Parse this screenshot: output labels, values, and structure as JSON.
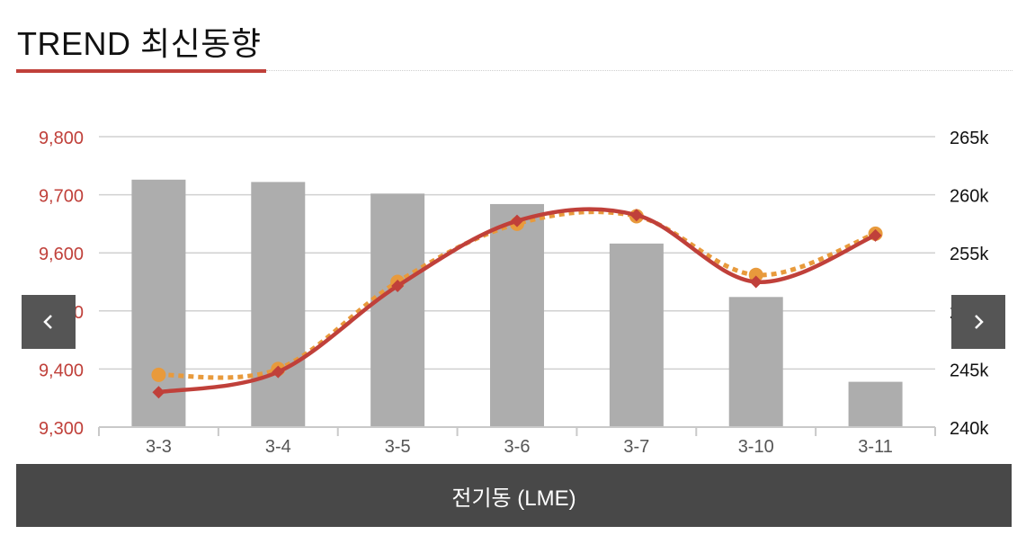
{
  "header": {
    "title": "TREND 최신동향"
  },
  "caption": "전기동 (LME)",
  "nav": {
    "prev_icon": "chevron-left-icon",
    "next_icon": "chevron-right-icon"
  },
  "chart_data": {
    "type": "bar+line",
    "categories": [
      "3-3",
      "3-4",
      "3-5",
      "3-6",
      "3-7",
      "3-10",
      "3-11"
    ],
    "left_axis": {
      "ticks": [
        "9,300",
        "9,400",
        "9,500",
        "9,600",
        "9,700",
        "9,800"
      ],
      "range": [
        9300,
        9800
      ],
      "color": "#c0403a"
    },
    "right_axis": {
      "ticks": [
        "240k",
        "245k",
        "250k",
        "255k",
        "260k",
        "265k"
      ],
      "range": [
        240000,
        265000
      ],
      "color": "#111111"
    },
    "grid": true,
    "series": [
      {
        "type": "bar",
        "axis": "right",
        "color": "#adadad",
        "values": [
          261300,
          261100,
          260100,
          259200,
          255800,
          251200,
          243900
        ]
      },
      {
        "type": "line",
        "axis": "left",
        "style": "dotted",
        "marker": "circle",
        "color": "#e89a3c",
        "values": [
          9390,
          9400,
          9550,
          9650,
          9663,
          9562,
          9633
        ]
      },
      {
        "type": "line",
        "axis": "left",
        "style": "solid",
        "marker": "diamond",
        "color": "#c0403a",
        "values": [
          9360,
          9395,
          9543,
          9655,
          9665,
          9550,
          9630
        ]
      }
    ]
  }
}
